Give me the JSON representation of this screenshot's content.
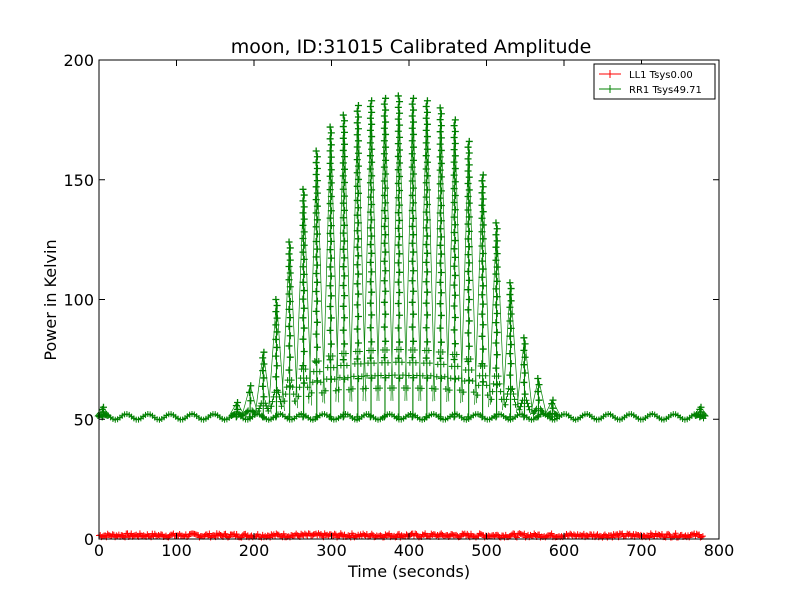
{
  "chart_data": {
    "type": "line",
    "title": "moon, ID:31015 Calibrated Amplitude",
    "xlabel": "Time (seconds)",
    "ylabel": "Power in Kelvin",
    "xlim": [
      0,
      800
    ],
    "ylim": [
      0,
      200
    ],
    "xticks": [
      "0",
      "100",
      "200",
      "300",
      "400",
      "500",
      "600",
      "700",
      "800"
    ],
    "yticks": [
      "0",
      "50",
      "100",
      "150",
      "200"
    ],
    "grid": false,
    "legend_position": "top-right",
    "marker": "plus",
    "series": [
      {
        "name": "LL1 Tsys0.00",
        "color": "#ff0000",
        "baseline": 1.5,
        "scan_peaks": []
      },
      {
        "name": "RR1 Tsys49.71",
        "color": "#008000",
        "baseline": 51,
        "scan_peaks": [
          {
            "t": 5,
            "peak": 55
          },
          {
            "t": 178,
            "peak": 57
          },
          {
            "t": 195,
            "peak": 64
          },
          {
            "t": 212,
            "peak": 78
          },
          {
            "t": 229,
            "peak": 100
          },
          {
            "t": 246,
            "peak": 124
          },
          {
            "t": 264,
            "peak": 146
          },
          {
            "t": 281,
            "peak": 162
          },
          {
            "t": 299,
            "peak": 172
          },
          {
            "t": 316,
            "peak": 177
          },
          {
            "t": 334,
            "peak": 181
          },
          {
            "t": 351,
            "peak": 183
          },
          {
            "t": 369,
            "peak": 184
          },
          {
            "t": 387,
            "peak": 185
          },
          {
            "t": 405,
            "peak": 184
          },
          {
            "t": 423,
            "peak": 183
          },
          {
            "t": 441,
            "peak": 180
          },
          {
            "t": 459,
            "peak": 175
          },
          {
            "t": 477,
            "peak": 166
          },
          {
            "t": 495,
            "peak": 152
          },
          {
            "t": 513,
            "peak": 132
          },
          {
            "t": 531,
            "peak": 107
          },
          {
            "t": 549,
            "peak": 84
          },
          {
            "t": 567,
            "peak": 67
          },
          {
            "t": 585,
            "peak": 58
          },
          {
            "t": 776,
            "peak": 55
          }
        ]
      }
    ]
  }
}
